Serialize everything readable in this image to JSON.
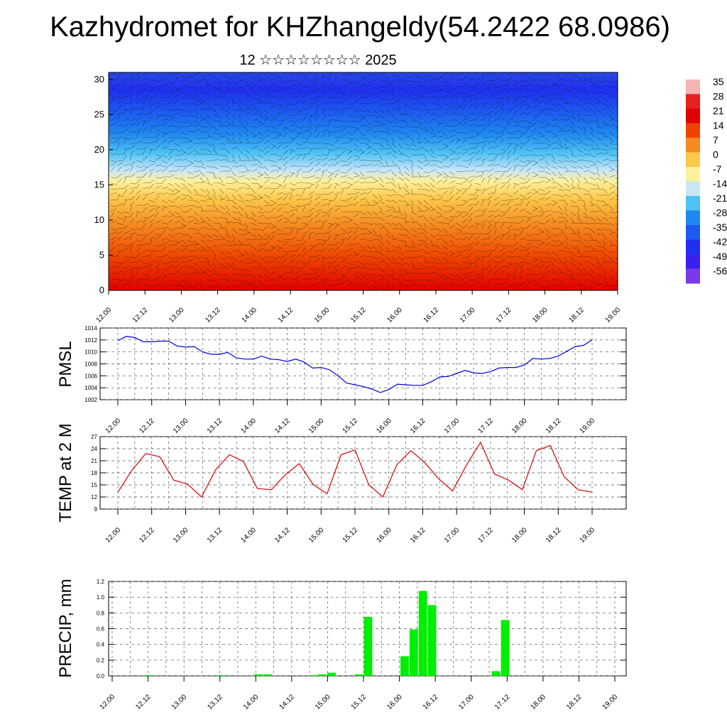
{
  "header": {
    "title": "Kazhydromet for KHZhangeldy(54.2422 68.0986)",
    "subtitle": "12 ☆☆☆☆☆☆☆☆ 2025"
  },
  "colors": {
    "pressure_line": "#0000dd",
    "temperature_line": "#dd0000",
    "precip_bar": "#00ee00"
  },
  "chart_data": [
    {
      "type": "heatmap",
      "title": "",
      "x_tick_labels": [
        "12.00",
        "12.12",
        "13.00",
        "13.12",
        "14.00",
        "14.12",
        "15.00",
        "15.12",
        "16.00",
        "16.12",
        "17.00",
        "17.12",
        "18.00",
        "18.12",
        "19.00"
      ],
      "y_ticks": [
        0,
        5,
        10,
        15,
        20,
        25,
        30
      ],
      "ylim": [
        0,
        31
      ],
      "colorbar": {
        "labels": [
          "35",
          "28",
          "21",
          "14",
          "7",
          "0",
          "-7",
          "-14",
          "-21",
          "-28",
          "-35",
          "-42",
          "-49",
          "-56"
        ],
        "colors": [
          "#f5b5b5",
          "#e82020",
          "#e20000",
          "#ee4400",
          "#f58a20",
          "#fcc84a",
          "#fff19a",
          "#c9e6f7",
          "#4dc2f5",
          "#1e88f0",
          "#1c5af0",
          "#2030f0",
          "#3a20f0",
          "#7a3ae8"
        ]
      },
      "approx_zero_isotherm_level": 16,
      "wind_vectors": true
    },
    {
      "type": "line",
      "ylabel": "PMSL",
      "ylim": [
        1002,
        1014
      ],
      "y_ticks": [
        1002,
        1004,
        1006,
        1008,
        1010,
        1012,
        1014
      ],
      "x_tick_labels": [
        "12.00",
        "12.12",
        "13.00",
        "13.12",
        "14.00",
        "14.12",
        "15.00",
        "15.12",
        "16.00",
        "16.12",
        "17.00",
        "17.12",
        "18.00",
        "18.12",
        "19.00"
      ],
      "x_step_hours": 3,
      "series": [
        {
          "values": [
            1011.9,
            1012.6,
            1012.4,
            1011.7,
            1011.7,
            1011.8,
            1011.8,
            1011.0,
            1010.8,
            1010.9,
            1010.0,
            1009.6,
            1009.6,
            1009.9,
            1009.0,
            1008.8,
            1008.8,
            1009.3,
            1008.8,
            1008.7,
            1008.4,
            1008.8,
            1008.3,
            1007.3,
            1007.4,
            1007.0,
            1006.0,
            1004.8,
            1004.5,
            1004.2,
            1003.8,
            1003.2,
            1003.7,
            1004.6,
            1004.5,
            1004.4,
            1004.4,
            1005.0,
            1005.8,
            1005.9,
            1006.4,
            1006.9,
            1006.5,
            1006.4,
            1006.7,
            1007.3,
            1007.4,
            1007.4,
            1007.8,
            1008.9,
            1008.8,
            1008.9,
            1009.3,
            1010.1,
            1010.9,
            1011.1,
            1012.0
          ]
        }
      ]
    },
    {
      "type": "line",
      "ylabel": "TEMP at 2 M",
      "ylim": [
        9,
        27
      ],
      "y_ticks": [
        9,
        12,
        15,
        18,
        21,
        24,
        27
      ],
      "x_tick_labels": [
        "12.00",
        "12.12",
        "13.00",
        "13.12",
        "14.00",
        "14.12",
        "15.00",
        "15.12",
        "16.00",
        "16.12",
        "17.00",
        "17.12",
        "18.00",
        "18.12",
        "19.00"
      ],
      "x_step_hours": 6,
      "series": [
        {
          "values": [
            13.2,
            18.6,
            22.8,
            22.0,
            16.2,
            15.2,
            12.0,
            18.7,
            22.5,
            20.8,
            14.1,
            13.8,
            17.5,
            20.3,
            15.1,
            12.8,
            22.5,
            23.7,
            15.0,
            12.0,
            20.0,
            23.5,
            20.6,
            16.5,
            13.5,
            20.0,
            25.6,
            17.7,
            16.2,
            13.8,
            23.5,
            24.8,
            17.0,
            13.8,
            13.2
          ]
        }
      ]
    },
    {
      "type": "bar",
      "ylabel": "PRECIP, mm",
      "ylim": [
        0,
        1.2
      ],
      "y_ticks": [
        "0.0",
        "0.2",
        "0.4",
        "0.6",
        "0.8",
        "1.0",
        "1.2"
      ],
      "x_tick_labels": [
        "12.00",
        "12.12",
        "13.00",
        "13.12",
        "14.00",
        "14.12",
        "15.00",
        "15.12",
        "16.00",
        "16.12",
        "17.00",
        "17.12",
        "18.00",
        "18.12",
        "19.00"
      ],
      "x_step_hours": 3,
      "series": [
        {
          "values": [
            0,
            0,
            0,
            0,
            0.01,
            0,
            0,
            0,
            0,
            0,
            0,
            0,
            0.01,
            0,
            0,
            0,
            0.02,
            0.02,
            0,
            0,
            0,
            0,
            0.01,
            0.02,
            0.04,
            0,
            0,
            0.02,
            0.75,
            0,
            0,
            0,
            0.25,
            0.59,
            1.08,
            0.9,
            0,
            0,
            0,
            0,
            0,
            0,
            0.06,
            0.71,
            0,
            0,
            0,
            0,
            0,
            0,
            0,
            0,
            0,
            0,
            0,
            0
          ]
        }
      ]
    }
  ]
}
